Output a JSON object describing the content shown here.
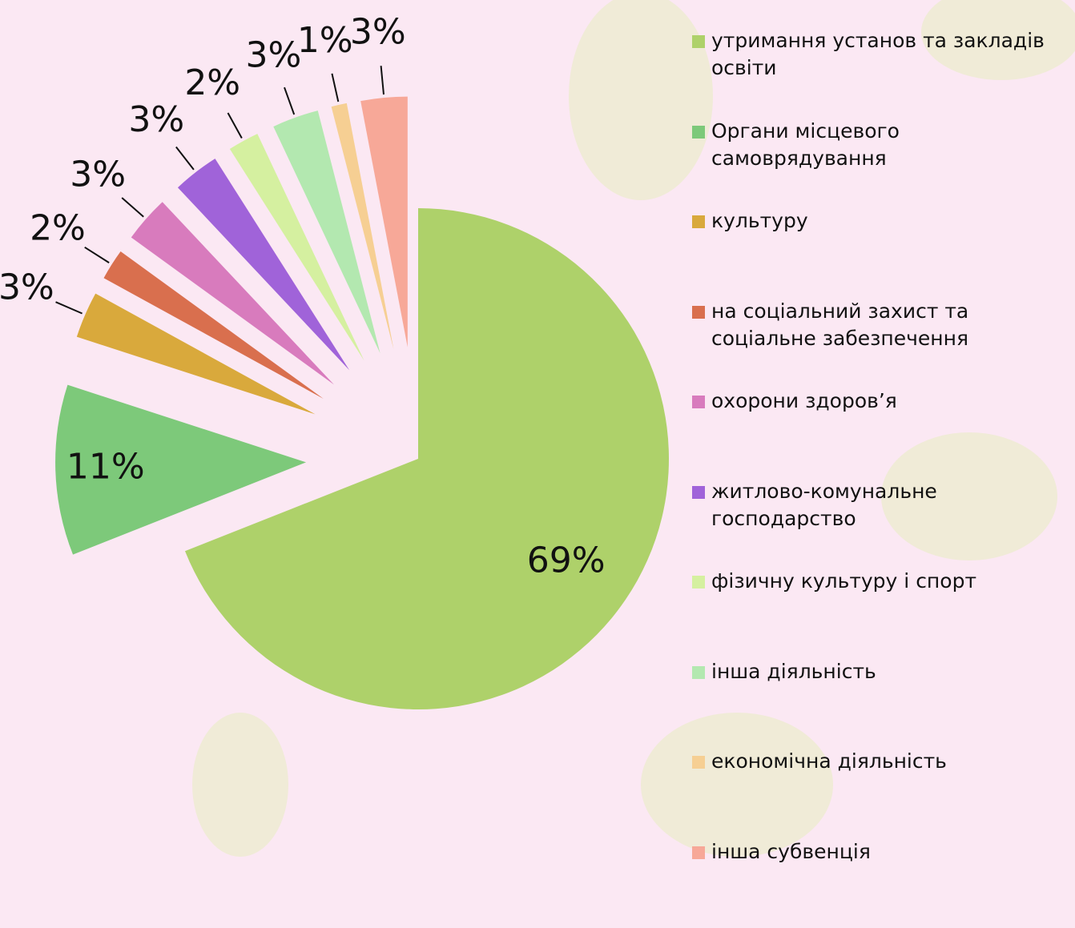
{
  "chart_data": {
    "type": "pie",
    "categories": [
      "утримання установ та закладів освіти",
      "Органи місцевого самоврядування",
      "культуру",
      "на соціальний захист та соціальне забезпечення",
      "охорони здоров’я",
      "житлово-комунальне господарство",
      "фізичну культуру і спорт",
      "інша діяльність",
      "економічна діяльність",
      "інша субвенція"
    ],
    "values": [
      69,
      11,
      3,
      2,
      3,
      3,
      2,
      3,
      1,
      3
    ],
    "value_labels": [
      "69%",
      "11%",
      "3%",
      "2%",
      "3%",
      "3%",
      "2%",
      "3%",
      "1%",
      "3%"
    ],
    "colors": [
      "#aed16a",
      "#7dc97a",
      "#d9a93c",
      "#d96f4e",
      "#d87bbd",
      "#a063d9",
      "#d5f0a0",
      "#b3e8b0",
      "#f6cf93",
      "#f7a898"
    ]
  }
}
